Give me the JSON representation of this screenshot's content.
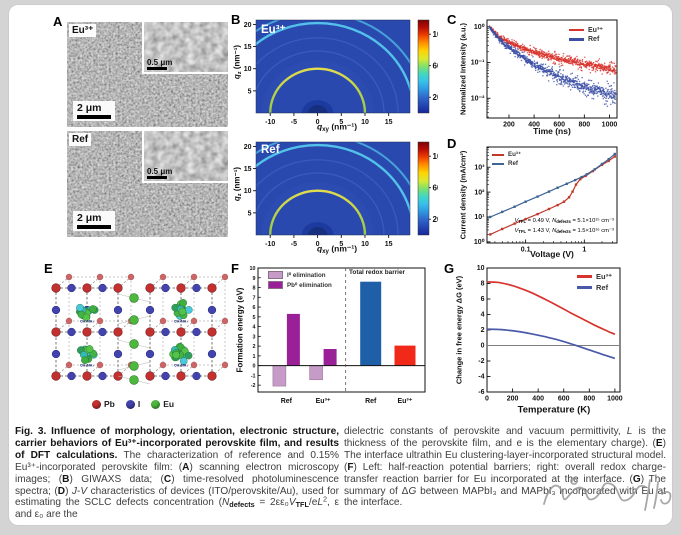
{
  "figure": {
    "caption_left": [
      {
        "t": "Fig. 3. Influence of morphology, orientation, electronic structure, carrier behaviors of Eu³⁺-incorporated perovskite film, and results of DFT calculations. ",
        "s": "b"
      },
      {
        "t": "The characterization of reference and 0.15% Eu³⁺-incorporated perovskite film: (",
        "s": ""
      },
      {
        "t": "A",
        "s": "b"
      },
      {
        "t": ") scanning electron microscopy images; (",
        "s": ""
      },
      {
        "t": "B",
        "s": "b"
      },
      {
        "t": ") GIWAXS data; (",
        "s": ""
      },
      {
        "t": "C",
        "s": "b"
      },
      {
        "t": ") time-resolved photoluminescence spectra; (",
        "s": ""
      },
      {
        "t": "D",
        "s": "b"
      },
      {
        "t": ") ",
        "s": ""
      },
      {
        "t": "J",
        "s": "i"
      },
      {
        "t": "-",
        "s": ""
      },
      {
        "t": "V",
        "s": "i"
      },
      {
        "t": " characteristics of devices (ITO/perovskite/Au), used for estimating the SCLC defects concentration (",
        "s": ""
      },
      {
        "t": "N",
        "s": "i"
      },
      {
        "t": "defects",
        "s": "sub"
      },
      {
        "t": " = 2εε₀",
        "s": ""
      },
      {
        "t": "V",
        "s": "i"
      },
      {
        "t": "TFL",
        "s": "sub"
      },
      {
        "t": "/e",
        "s": ""
      },
      {
        "t": "L",
        "s": "i"
      },
      {
        "t": "2",
        "s": "sup"
      },
      {
        "t": ", ε and ε₀ are the",
        "s": ""
      }
    ],
    "caption_right": [
      {
        "t": "dielectric constants of perovskite and vacuum permittivity, ",
        "s": ""
      },
      {
        "t": "L",
        "s": "i"
      },
      {
        "t": " is the thickness of the perovskite film, and e is the elementary charge). (",
        "s": ""
      },
      {
        "t": "E",
        "s": "b"
      },
      {
        "t": ") The interface ultrathin Eu clustering-layer-incorporated structural model. (",
        "s": ""
      },
      {
        "t": "F",
        "s": "b"
      },
      {
        "t": ") Left: half-reaction potential barriers; right: overall redox charge-transfer reaction barrier for Eu incorporated at the interface. (",
        "s": ""
      },
      {
        "t": "G",
        "s": "b"
      },
      {
        "t": ") The summary of Δ",
        "s": ""
      },
      {
        "t": "G",
        "s": "i"
      },
      {
        "t": " between MAPbI₃ and MAPbI₃ incorporated with Eu at the interface.",
        "s": ""
      }
    ]
  },
  "panels": {
    "a": {
      "label": "A",
      "images": [
        {
          "tag": "Eu³⁺",
          "scalebar": "2 μm",
          "inset_scalebar": "0.5 μm"
        },
        {
          "tag": "Ref",
          "scalebar": "2 μm",
          "inset_scalebar": "0.5 μm"
        }
      ]
    },
    "b": {
      "label": "B",
      "tags": [
        "Eu³⁺",
        "Ref"
      ],
      "xlabel": [
        {
          "t": "q",
          "s": "bi"
        },
        {
          "t": "xy",
          "s": "bsub"
        },
        {
          "t": " (nm⁻¹)",
          "s": "b"
        }
      ],
      "ylabel": [
        {
          "t": "q",
          "s": "bi"
        },
        {
          "t": "z",
          "s": "bsub"
        },
        {
          "t": " (nm⁻¹)",
          "s": "b"
        }
      ]
    },
    "c": {
      "label": "C"
    },
    "d": {
      "label": "D"
    },
    "e": {
      "label": "E",
      "cluster_label": "CH₃NH₃",
      "legend": [
        {
          "name": "Pb",
          "color": "#c23030"
        },
        {
          "name": "I",
          "color": "#4343ae"
        },
        {
          "name": "Eu",
          "color": "#4db83c"
        }
      ]
    },
    "f": {
      "label": "F"
    },
    "g": {
      "label": "G"
    }
  },
  "chart_data": {
    "B1": {
      "type": "heatmap",
      "title": "Eu³⁺",
      "xlim": [
        -13,
        19.5
      ],
      "ylim": [
        0,
        21
      ],
      "xticks": [
        -10,
        -5,
        0,
        5,
        10,
        15
      ],
      "yticks": [
        5,
        10,
        15,
        20
      ],
      "rings": [
        {
          "q": 10,
          "level": "high"
        },
        {
          "q": 14,
          "level": "faint"
        },
        {
          "q": 17,
          "level": "faint"
        },
        {
          "q": 20.3,
          "level": "medium"
        },
        {
          "q": 22.6,
          "level": "medium2"
        }
      ],
      "beamstop_q": 2.9,
      "background": "#2a49af",
      "colorbar": {
        "range": [
          0,
          1180
        ],
        "ticks": [
          200,
          600,
          1000
        ]
      }
    },
    "B2": {
      "type": "heatmap",
      "title": "Ref",
      "xlim": [
        -13,
        19.5
      ],
      "ylim": [
        0,
        21
      ],
      "xticks": [
        -10,
        -5,
        0,
        5,
        10,
        15
      ],
      "yticks": [
        5,
        10,
        15,
        20
      ],
      "rings": [
        {
          "q": 10,
          "level": "high"
        },
        {
          "q": 14,
          "level": "faint"
        },
        {
          "q": 17,
          "level": "faint"
        },
        {
          "q": 20.3,
          "level": "medium"
        },
        {
          "q": 22.6,
          "level": "medium2"
        }
      ],
      "beamstop_q": 2.9,
      "background": "#2a49af",
      "colorbar": {
        "range": [
          0,
          1180
        ],
        "ticks": [
          200,
          600,
          1000
        ]
      }
    },
    "C": {
      "type": "scatter",
      "xlabel": "Time (ns)",
      "ylabel": "Normalized Intensity (a.u.)",
      "xlim": [
        25,
        1060
      ],
      "xticks": [
        200,
        400,
        600,
        800,
        1000
      ],
      "yscale": "log",
      "ylim": [
        0.0028,
        1.55
      ],
      "yticks": [
        1,
        0.1,
        0.01
      ],
      "ytick_labels": [
        "10⁰",
        "10⁻¹",
        "10⁻²"
      ],
      "series": [
        {
          "name": "Eu³⁺",
          "color": "#d8332d",
          "trend": [
            [
              46,
              1.0
            ],
            [
              100,
              0.62
            ],
            [
              150,
              0.45
            ],
            [
              200,
              0.36
            ],
            [
              300,
              0.26
            ],
            [
              400,
              0.2
            ],
            [
              500,
              0.155
            ],
            [
              600,
              0.125
            ],
            [
              700,
              0.105
            ],
            [
              800,
              0.09
            ],
            [
              900,
              0.078
            ],
            [
              1000,
              0.068
            ],
            [
              1052,
              0.065
            ]
          ]
        },
        {
          "name": "Ref",
          "color": "#3b4fa5",
          "trend": [
            [
              46,
              1.0
            ],
            [
              100,
              0.55
            ],
            [
              150,
              0.36
            ],
            [
              200,
              0.26
            ],
            [
              300,
              0.15
            ],
            [
              400,
              0.091
            ],
            [
              500,
              0.058
            ],
            [
              600,
              0.04
            ],
            [
              700,
              0.028
            ],
            [
              800,
              0.021
            ],
            [
              900,
              0.016
            ],
            [
              1000,
              0.013
            ],
            [
              1052,
              0.012
            ]
          ]
        }
      ]
    },
    "D": {
      "type": "line",
      "xlabel": "Voltage (V)",
      "ylabel": "Current density (mA/cm²)",
      "xscale": "log",
      "yscale": "log",
      "xlim": [
        0.022,
        3.6
      ],
      "ylim": [
        0.9,
        6500
      ],
      "xticks": [
        0.1,
        1
      ],
      "xtick_labels": [
        "0.1",
        "1"
      ],
      "yticks": [
        1,
        10,
        100,
        1000
      ],
      "ytick_labels": [
        "10⁰",
        "10¹",
        "10²",
        "10³"
      ],
      "series": [
        {
          "name": "Eu³⁺",
          "color": "#c0392b",
          "points": [
            [
              0.025,
              2
            ],
            [
              0.04,
              3.3
            ],
            [
              0.065,
              5.4
            ],
            [
              0.1,
              8.2
            ],
            [
              0.16,
              13
            ],
            [
              0.25,
              21
            ],
            [
              0.35,
              30
            ],
            [
              0.45,
              41
            ],
            [
              0.55,
              62
            ],
            [
              0.63,
              105
            ],
            [
              0.72,
              200
            ],
            [
              0.85,
              330
            ],
            [
              1.05,
              450
            ],
            [
              1.4,
              700
            ],
            [
              2,
              1250
            ],
            [
              2.6,
              1800
            ],
            [
              3.3,
              2700
            ]
          ]
        },
        {
          "name": "Ref",
          "color": "#3d6493",
          "points": [
            [
              0.025,
              10
            ],
            [
              0.04,
              16
            ],
            [
              0.065,
              26
            ],
            [
              0.1,
              41
            ],
            [
              0.16,
              66
            ],
            [
              0.25,
              105
            ],
            [
              0.35,
              150
            ],
            [
              0.5,
              215
            ],
            [
              0.7,
              305
            ],
            [
              0.9,
              400
            ],
            [
              1.1,
              520
            ],
            [
              1.5,
              820
            ],
            [
              2,
              1350
            ],
            [
              2.6,
              2100
            ],
            [
              3.3,
              3400
            ]
          ]
        }
      ],
      "annotations": [
        {
          "color": "#c0392b",
          "segments": [
            {
              "t": "V",
              "s": "i"
            },
            {
              "t": "TFL",
              "s": "sub"
            },
            {
              "t": " = 0.49 V, ",
              "s": ""
            },
            {
              "t": "N",
              "s": "i"
            },
            {
              "t": "defects",
              "s": "sub"
            },
            {
              "t": " = 5.1×10¹⁵ cm⁻³",
              "s": ""
            }
          ]
        },
        {
          "color": "#50565e",
          "segments": [
            {
              "t": "V",
              "s": "i"
            },
            {
              "t": "TFL",
              "s": "sub"
            },
            {
              "t": " = 1.43 V, ",
              "s": ""
            },
            {
              "t": "N",
              "s": "i"
            },
            {
              "t": "defects",
              "s": "sub"
            },
            {
              "t": " = 1.5×10¹⁶ cm⁻³",
              "s": ""
            }
          ]
        }
      ]
    },
    "F": {
      "type": "bar",
      "ylabel": "Formation energy (eV)",
      "ylim": [
        -2.7,
        10
      ],
      "yticks_range": [
        -2,
        10
      ],
      "left": {
        "categories": [
          "Ref",
          "Eu³⁺"
        ],
        "series": [
          {
            "name": "I⁰ elimination",
            "color": "#c79bc7",
            "values": [
              -2.1,
              -1.45
            ]
          },
          {
            "name": "Pb⁰ elimination",
            "color": "#992097",
            "values": [
              5.3,
              1.7
            ]
          }
        ]
      },
      "right": {
        "label": "Total redox barrier",
        "categories": [
          "Ref",
          "Eu³⁺"
        ],
        "colors": [
          "#1f5fa8",
          "#f02918"
        ],
        "values": [
          8.6,
          2.05
        ]
      }
    },
    "G": {
      "type": "line",
      "xlabel": "Temperature (K)",
      "ylabel": "Change in free energy ΔG (eV)",
      "xlim": [
        0,
        1040
      ],
      "ylim": [
        -6,
        10
      ],
      "xticks": [
        0,
        200,
        400,
        600,
        800,
        1000
      ],
      "yticks": [
        -6,
        -4,
        -2,
        0,
        2,
        4,
        6,
        8,
        10
      ],
      "zero_line": true,
      "series": [
        {
          "name": "Eu³⁺",
          "color": "#d8332d",
          "points": [
            [
              0,
              8.2
            ],
            [
              80,
              8.15
            ],
            [
              160,
              7.9
            ],
            [
              250,
              7.45
            ],
            [
              350,
              6.8
            ],
            [
              450,
              6.0
            ],
            [
              550,
              5.15
            ],
            [
              650,
              4.25
            ],
            [
              750,
              3.4
            ],
            [
              850,
              2.55
            ],
            [
              950,
              1.8
            ],
            [
              1000,
              1.45
            ]
          ]
        },
        {
          "name": "Ref",
          "color": "#4a5aa8",
          "points": [
            [
              0,
              2.1
            ],
            [
              80,
              2.08
            ],
            [
              160,
              1.98
            ],
            [
              250,
              1.8
            ],
            [
              350,
              1.5
            ],
            [
              450,
              1.15
            ],
            [
              550,
              0.75
            ],
            [
              650,
              0.25
            ],
            [
              750,
              -0.3
            ],
            [
              850,
              -0.85
            ],
            [
              950,
              -1.4
            ],
            [
              1000,
              -1.65
            ]
          ]
        }
      ]
    }
  }
}
